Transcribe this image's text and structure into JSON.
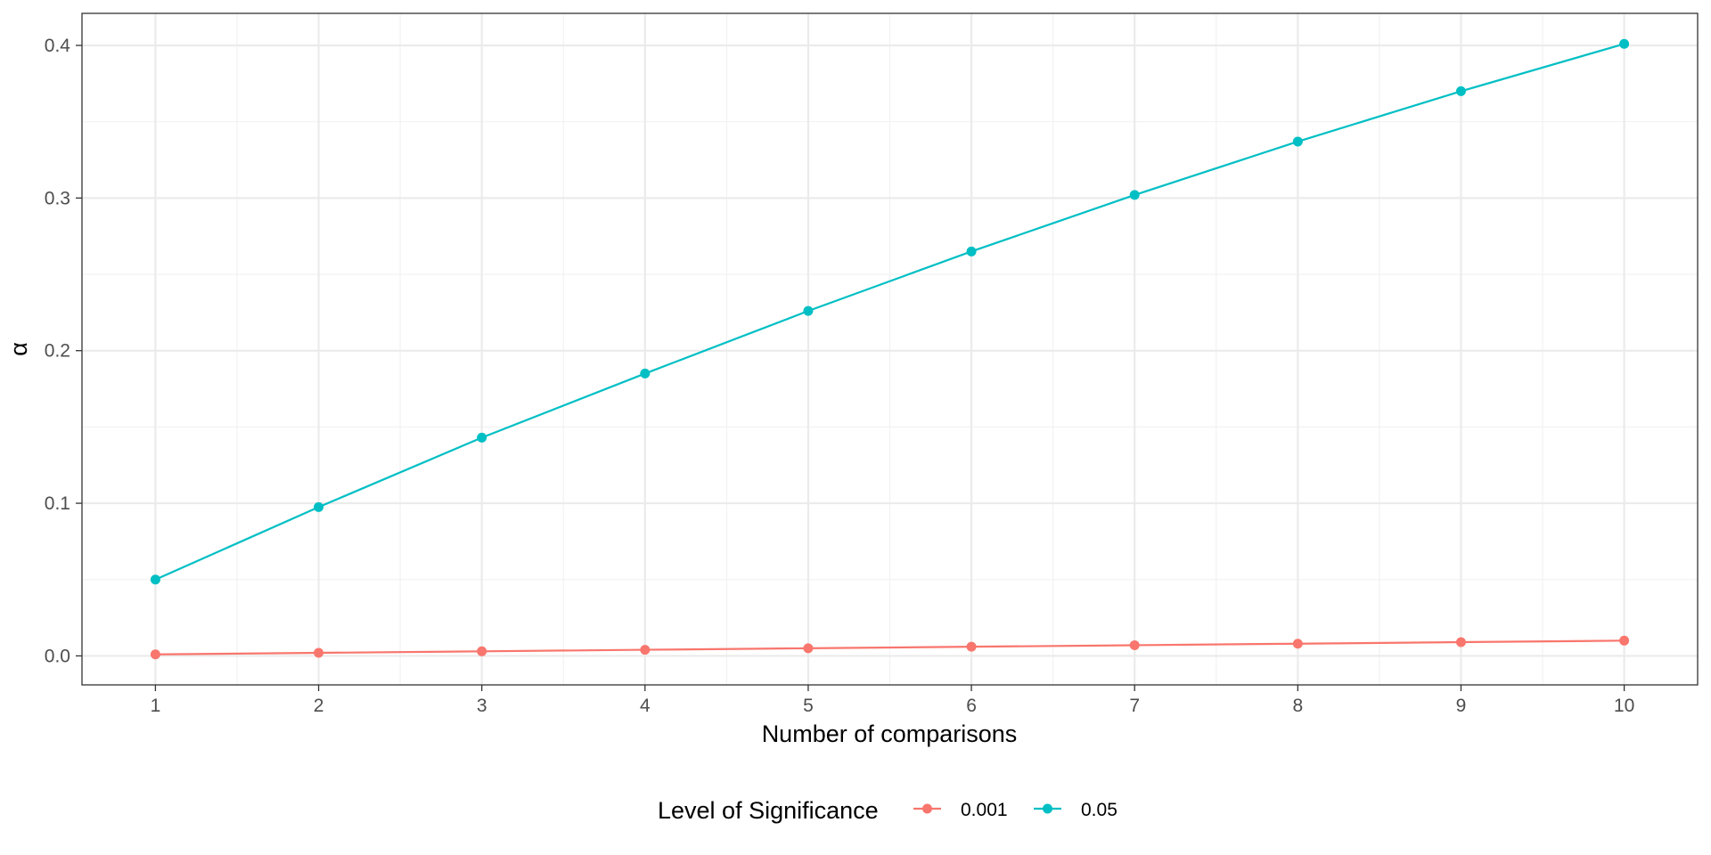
{
  "chart_data": {
    "type": "line",
    "title": "",
    "xlabel": "Number of comparisons",
    "ylabel": "α",
    "x": [
      1,
      2,
      3,
      4,
      5,
      6,
      7,
      8,
      9,
      10
    ],
    "xlim": [
      0.55,
      10.45
    ],
    "ylim": [
      -0.019,
      0.421
    ],
    "xticks": [
      1,
      2,
      3,
      4,
      5,
      6,
      7,
      8,
      9,
      10
    ],
    "yticks": [
      0.0,
      0.1,
      0.2,
      0.3,
      0.4
    ],
    "ytick_labels": [
      "0.0",
      "0.1",
      "0.2",
      "0.3",
      "0.4"
    ],
    "grid": true,
    "legend": {
      "title": "Level of Significance",
      "placement": "bottom"
    },
    "series": [
      {
        "name": "0.001",
        "color": "#F8766D",
        "values": [
          0.001,
          0.002,
          0.003,
          0.004,
          0.005,
          0.006,
          0.007,
          0.008,
          0.009,
          0.01
        ]
      },
      {
        "name": "0.05",
        "color": "#00BFC4",
        "values": [
          0.05,
          0.0975,
          0.143,
          0.185,
          0.226,
          0.265,
          0.302,
          0.337,
          0.37,
          0.401
        ]
      }
    ]
  }
}
